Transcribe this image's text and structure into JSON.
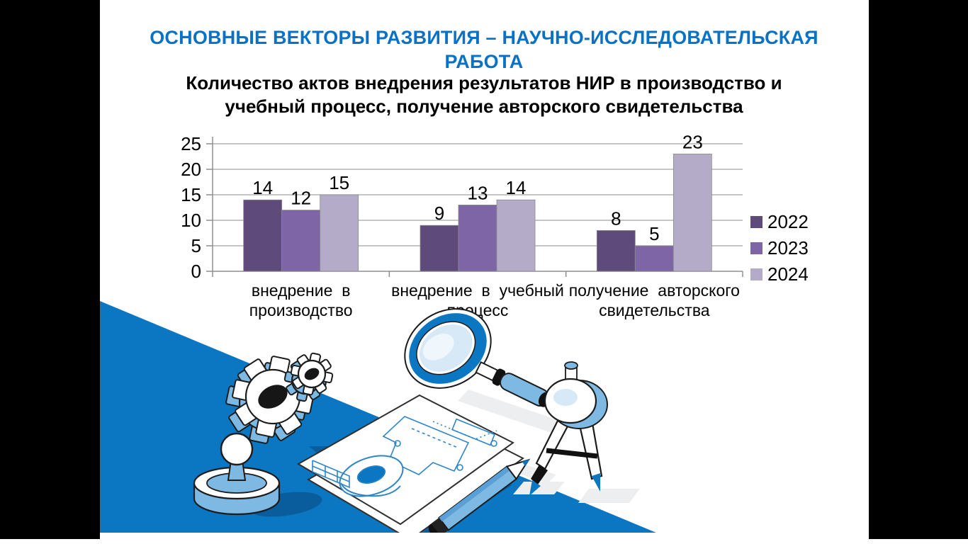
{
  "slide": {
    "title": "ОСНОВНЫЕ ВЕКТОРЫ РАЗВИТИЯ – НАУЧНО-ИССЛЕДОВАТЕЛЬСКАЯ РАБОТА",
    "title_color": "#0a72c4",
    "subtitle": "Количество актов внедрения результатов НИР в производство и учебный процесс, получение авторского свидетельства",
    "letterbox_color": "#000000",
    "background_color": "#ffffff"
  },
  "chart_data": {
    "type": "bar",
    "title": "Количество актов внедрения результатов НИР в производство и учебный процесс, получение авторского свидетельства",
    "categories": [
      "внедрение в производство",
      "внедрение в учебный процесс",
      "получение авторского свидетельства"
    ],
    "category_lines": [
      [
        "внедрение в",
        "производство"
      ],
      [
        "внедрение в учебный",
        "процесс"
      ],
      [
        "получение авторского",
        "свидетельства"
      ]
    ],
    "series": [
      {
        "name": "2022",
        "color": "#5f4a7c",
        "values": [
          14,
          9,
          8
        ]
      },
      {
        "name": "2023",
        "color": "#7e66a6",
        "values": [
          12,
          13,
          5
        ]
      },
      {
        "name": "2024",
        "color": "#b4abc8",
        "values": [
          15,
          14,
          23
        ]
      }
    ],
    "ylim": [
      0,
      25
    ],
    "yticks": [
      0,
      5,
      10,
      15,
      20,
      25
    ],
    "grid": true,
    "grid_color": "#a3a3a3",
    "axis_color": "#8f8f8f",
    "data_labels": true,
    "legend_position": "right",
    "xlabel": "",
    "ylabel": ""
  },
  "illustration": {
    "objects": [
      "gear-icon",
      "small-gear-icon",
      "stamp-icon",
      "blueprint-sheets",
      "magnifier-icon",
      "drafting-compass-icon",
      "pencil-icon"
    ],
    "main_blue": "#0b77c2",
    "light_blue": "#7db9e2",
    "shadow_blue": "#0a5d9c",
    "pale_blue": "#d7e9f7",
    "floor_shadow": "#eceef0",
    "outline": "#1c1c1c"
  }
}
